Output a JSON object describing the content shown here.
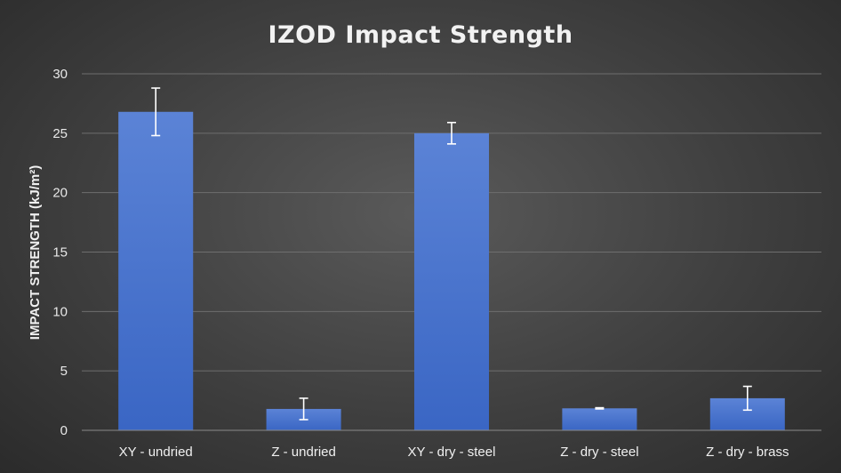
{
  "chart_data": {
    "type": "bar",
    "title": "IZOD Impact Strength",
    "xlabel": "",
    "ylabel": "IMPACT STRENGTH (kJ/m²)",
    "categories": [
      "XY - undried",
      "Z - undried",
      "XY - dry - steel",
      "Z - dry - steel",
      "Z - dry - brass"
    ],
    "series": [
      {
        "values": [
          26.8,
          1.8,
          25.0,
          1.85,
          2.7
        ],
        "error": [
          2.0,
          0.9,
          0.9,
          0.05,
          1.0
        ]
      }
    ],
    "ylim": [
      0,
      30
    ],
    "yticks": [
      "0",
      "5",
      "10",
      "15",
      "20",
      "25",
      "30"
    ],
    "grid": true,
    "legend": "none",
    "colors": {
      "bar_top": "#5b83d6",
      "bar_bottom": "#3a66c4",
      "error_bar": "#ffffff"
    }
  }
}
